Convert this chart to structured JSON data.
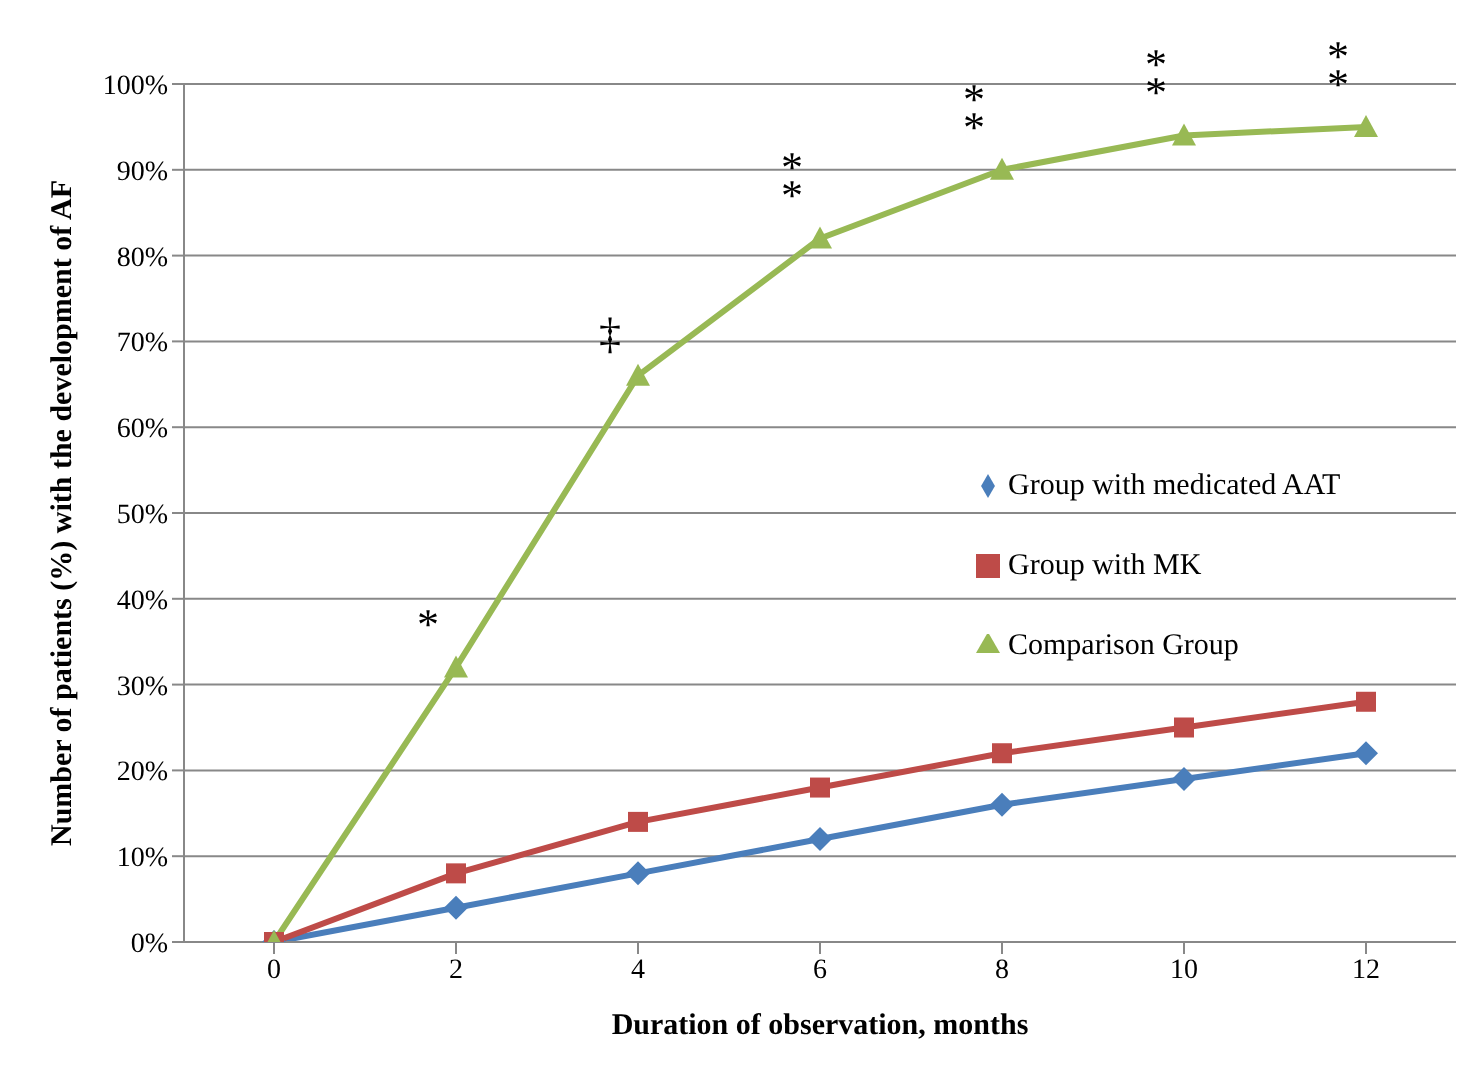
{
  "chart_data": {
    "type": "line",
    "xlabel": "Duration of observation, months",
    "ylabel": "Number of patients (%) with the development of AF",
    "categories": [
      "0",
      "2",
      "4",
      "6",
      "8",
      "10",
      "12"
    ],
    "series": [
      {
        "name": "Group with medicated AAT",
        "color": "#4a7ebb",
        "marker": "diamond",
        "values": [
          0,
          4,
          8,
          12,
          16,
          19,
          22
        ]
      },
      {
        "name": "Group with MK",
        "color": "#be4b48",
        "marker": "square",
        "values": [
          0,
          8,
          14,
          18,
          22,
          25,
          28
        ]
      },
      {
        "name": "Comparison Group",
        "color": "#98b954",
        "marker": "triangle",
        "values": [
          0,
          32,
          66,
          82,
          90,
          94,
          95
        ]
      }
    ],
    "ylim": [
      0,
      100
    ],
    "yticks": [
      {
        "value": 0,
        "label": "0%"
      },
      {
        "value": 10,
        "label": "10%"
      },
      {
        "value": 20,
        "label": "20%"
      },
      {
        "value": 30,
        "label": "30%"
      },
      {
        "value": 40,
        "label": "40%"
      },
      {
        "value": 50,
        "label": "50%"
      },
      {
        "value": 60,
        "label": "60%"
      },
      {
        "value": 70,
        "label": "70%"
      },
      {
        "value": 80,
        "label": "80%"
      },
      {
        "value": 90,
        "label": "90%"
      },
      {
        "value": 100,
        "label": "100%"
      }
    ],
    "grid": "y",
    "legend": "right",
    "annotations": [
      {
        "text": "*",
        "x": "2",
        "y": 32
      },
      {
        "text": "‡",
        "x": "4",
        "y": 66
      },
      {
        "text": "**",
        "x": "6",
        "y": 82
      },
      {
        "text": "**",
        "x": "8",
        "y": 90
      },
      {
        "text": "**",
        "x": "10",
        "y": 94
      },
      {
        "text": "**",
        "x": "12",
        "y": 95
      }
    ]
  }
}
